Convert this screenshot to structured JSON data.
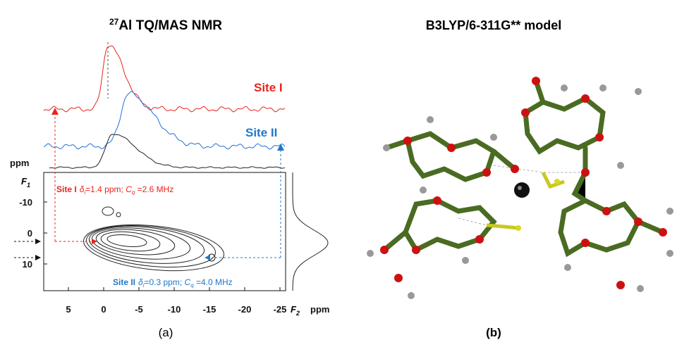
{
  "panel_a": {
    "title": {
      "superscript": "27",
      "text": "Al TQ/MAS NMR"
    },
    "traces": {
      "site1": "Site I",
      "site2": "Site II"
    },
    "y_axis": {
      "unit": "ppm",
      "label": "F",
      "label_sub": "1",
      "ticks": [
        -10,
        0,
        10
      ]
    },
    "x_axis": {
      "label": "F",
      "label_sub": "2",
      "unit": "ppm",
      "ticks": [
        5,
        0,
        -5,
        -10,
        -15,
        -20,
        -25
      ]
    },
    "annotations": [
      {
        "segments": [
          "Site I",
          "δ",
          "i",
          "=1.4 ppm; ",
          "C",
          "q",
          " =2.6 MHz"
        ]
      },
      {
        "segments": [
          "Site II",
          "δ",
          "i",
          "=0.3 ppm; ",
          "C",
          "q",
          " =4.0 MHz"
        ]
      }
    ],
    "caption": "(a)"
  },
  "panel_b": {
    "title": "B3LYP/6-311G** model",
    "caption": "(b)"
  }
}
